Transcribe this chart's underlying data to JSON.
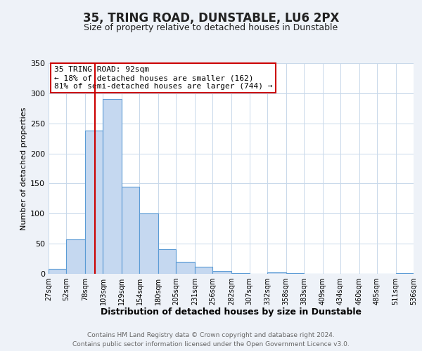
{
  "title": "35, TRING ROAD, DUNSTABLE, LU6 2PX",
  "subtitle": "Size of property relative to detached houses in Dunstable",
  "xlabel": "Distribution of detached houses by size in Dunstable",
  "ylabel": "Number of detached properties",
  "bar_color": "#c5d8f0",
  "bar_edge_color": "#5b9bd5",
  "bin_edges": [
    27,
    52,
    78,
    103,
    129,
    154,
    180,
    205,
    231,
    256,
    282,
    307,
    332,
    358,
    383,
    409,
    434,
    460,
    485,
    511,
    536
  ],
  "bar_heights": [
    8,
    57,
    238,
    290,
    145,
    100,
    41,
    20,
    12,
    5,
    1,
    0,
    2,
    1,
    0,
    0,
    0,
    0,
    0,
    1
  ],
  "tick_labels": [
    "27sqm",
    "52sqm",
    "78sqm",
    "103sqm",
    "129sqm",
    "154sqm",
    "180sqm",
    "205sqm",
    "231sqm",
    "256sqm",
    "282sqm",
    "307sqm",
    "332sqm",
    "358sqm",
    "383sqm",
    "409sqm",
    "434sqm",
    "460sqm",
    "485sqm",
    "511sqm",
    "536sqm"
  ],
  "ylim": [
    0,
    350
  ],
  "yticks": [
    0,
    50,
    100,
    150,
    200,
    250,
    300,
    350
  ],
  "vline_x": 92,
  "vline_color": "#cc0000",
  "annotation_line1": "35 TRING ROAD: 92sqm",
  "annotation_line2": "← 18% of detached houses are smaller (162)",
  "annotation_line3": "81% of semi-detached houses are larger (744) →",
  "annotation_box_color": "#ffffff",
  "annotation_box_edge_color": "#cc0000",
  "footer_line1": "Contains HM Land Registry data © Crown copyright and database right 2024.",
  "footer_line2": "Contains public sector information licensed under the Open Government Licence v3.0.",
  "background_color": "#eef2f8",
  "plot_background_color": "#ffffff",
  "grid_color": "#c8d8ea",
  "title_fontsize": 12,
  "subtitle_fontsize": 9,
  "xlabel_fontsize": 9,
  "ylabel_fontsize": 8,
  "tick_fontsize": 7,
  "footer_fontsize": 6.5
}
